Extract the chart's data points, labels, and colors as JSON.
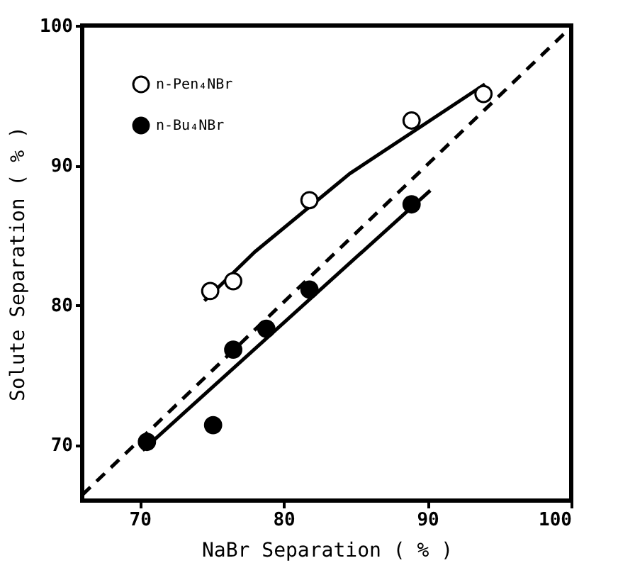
{
  "chart_data": {
    "type": "scatter",
    "xlabel": "NaBr Separation ( % )",
    "ylabel": "Solute Separation ( % )",
    "xlim": [
      66,
      100
    ],
    "ylim": [
      66,
      100
    ],
    "xticks": [
      70,
      80,
      90,
      100
    ],
    "yticks": [
      70,
      80,
      90,
      100
    ],
    "grid": false,
    "legend": "top left",
    "marker": "circle",
    "series": [
      {
        "name": "n-Pen₄NBr",
        "color": "#ffffff",
        "x": [
          74.9,
          76.5,
          81.8,
          88.9,
          93.9
        ],
        "values": [
          81.0,
          81.7,
          87.5,
          93.2,
          95.1
        ]
      },
      {
        "name": "n-Bu₄NBr",
        "color": "#000000",
        "x": [
          70.5,
          75.1,
          76.5,
          78.8,
          81.8,
          88.9
        ],
        "values": [
          70.2,
          71.4,
          76.8,
          78.3,
          81.1,
          87.2
        ]
      },
      {
        "type": "line",
        "color": "#000000",
        "line_style": "solid",
        "marker": "none",
        "x": [
          74.5,
          78.0,
          84.6,
          94.0
        ],
        "values": [
          80.3,
          83.8,
          89.4,
          95.8
        ]
      },
      {
        "type": "line",
        "color": "#000000",
        "line_style": "solid",
        "marker": "none",
        "x": [
          70.2,
          90.2
        ],
        "values": [
          69.6,
          88.2
        ]
      },
      {
        "type": "line",
        "color": "#000000",
        "line_style": "dashed",
        "marker": "none",
        "x": [
          66,
          100
        ],
        "values": [
          66.4,
          99.9
        ]
      }
    ]
  }
}
